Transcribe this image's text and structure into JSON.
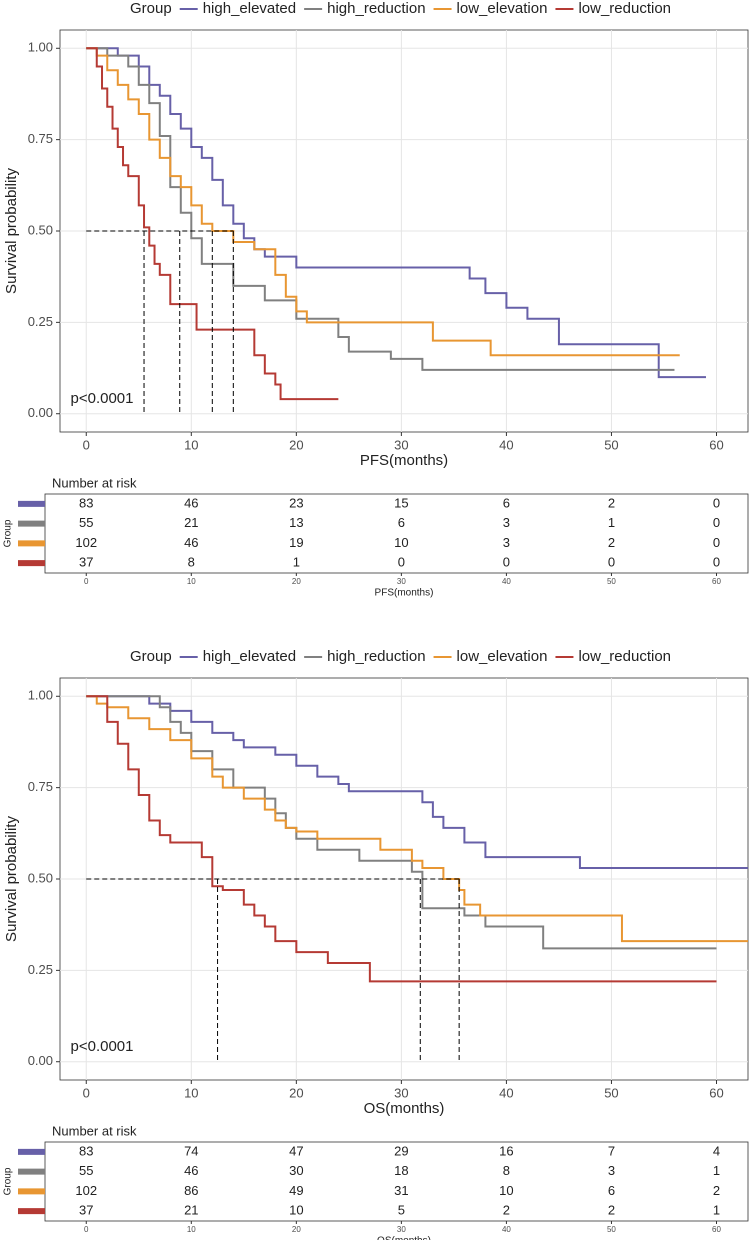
{
  "chart_data": [
    {
      "type": "step",
      "legend_title": "Group",
      "xlabel": "PFS(months)",
      "ylabel": "Survival probability",
      "annotation": "p<0.0001",
      "xlim": [
        -2.5,
        63
      ],
      "ylim": [
        -0.05,
        1.05
      ],
      "xticks": [
        0,
        10,
        20,
        30,
        40,
        50,
        60
      ],
      "yticks": [
        {
          "value": 0,
          "label": "0.00"
        },
        {
          "value": 0.25,
          "label": "0.25"
        },
        {
          "value": 0.5,
          "label": "0.50"
        },
        {
          "value": 0.75,
          "label": "0.75"
        },
        {
          "value": 1,
          "label": "1.00"
        }
      ],
      "grid": true,
      "series": [
        {
          "name": "high_elevated",
          "color": "#6760a8",
          "x": [
            0,
            3,
            5,
            6,
            7,
            8,
            9,
            10,
            11,
            12,
            13,
            14,
            15,
            16,
            17,
            20,
            36.5,
            38,
            40,
            42,
            45,
            54.5,
            59
          ],
          "values": [
            1,
            0.98,
            0.95,
            0.9,
            0.87,
            0.82,
            0.78,
            0.73,
            0.7,
            0.64,
            0.57,
            0.52,
            0.48,
            0.45,
            0.43,
            0.4,
            0.37,
            0.33,
            0.29,
            0.26,
            0.19,
            0.1,
            0.1
          ]
        },
        {
          "name": "high_reduction",
          "color": "#808080",
          "x": [
            0,
            2,
            4,
            5,
            6,
            7,
            8,
            9,
            10,
            11,
            14,
            17,
            20,
            24,
            25,
            29,
            32,
            56
          ],
          "values": [
            1,
            0.98,
            0.95,
            0.9,
            0.85,
            0.76,
            0.62,
            0.55,
            0.48,
            0.41,
            0.35,
            0.31,
            0.26,
            0.21,
            0.17,
            0.15,
            0.12,
            0.12
          ]
        },
        {
          "name": "low_elevation",
          "color": "#e89632",
          "x": [
            0,
            1,
            2,
            3,
            4,
            5,
            6,
            7,
            8,
            9,
            10,
            11,
            12,
            14,
            16,
            18,
            19,
            20,
            21,
            33,
            38.5,
            56.5
          ],
          "values": [
            1,
            0.98,
            0.94,
            0.9,
            0.86,
            0.82,
            0.75,
            0.7,
            0.65,
            0.62,
            0.57,
            0.52,
            0.5,
            0.47,
            0.45,
            0.38,
            0.32,
            0.28,
            0.25,
            0.2,
            0.16,
            0.16
          ]
        },
        {
          "name": "low_reduction",
          "color": "#b53a34",
          "x": [
            0,
            1,
            1.5,
            2,
            2.5,
            3,
            3.5,
            4,
            5,
            5.5,
            6,
            6.5,
            7,
            8,
            10.5,
            15,
            16,
            17,
            18,
            18.5,
            24
          ],
          "values": [
            1,
            0.95,
            0.89,
            0.84,
            0.78,
            0.73,
            0.68,
            0.65,
            0.57,
            0.51,
            0.46,
            0.41,
            0.38,
            0.3,
            0.23,
            0.23,
            0.16,
            0.11,
            0.08,
            0.04,
            0.04
          ]
        }
      ],
      "reference_lines": {
        "y": 0.5,
        "x": [
          5.5,
          8.9,
          12,
          14
        ]
      },
      "risk_table": {
        "title": "Number at risk",
        "ylabel": "Group",
        "xlabel": "PFS(months)",
        "times": [
          0,
          10,
          20,
          30,
          40,
          50,
          60
        ],
        "rows": [
          [
            83,
            46,
            23,
            15,
            6,
            2,
            0
          ],
          [
            55,
            21,
            13,
            6,
            3,
            1,
            0
          ],
          [
            102,
            46,
            19,
            10,
            3,
            2,
            0
          ],
          [
            37,
            8,
            1,
            0,
            0,
            0,
            0
          ]
        ]
      }
    },
    {
      "type": "step",
      "legend_title": "Group",
      "xlabel": "OS(months)",
      "ylabel": "Survival probability",
      "annotation": "p<0.0001",
      "xlim": [
        -2.5,
        63
      ],
      "ylim": [
        -0.05,
        1.05
      ],
      "xticks": [
        0,
        10,
        20,
        30,
        40,
        50,
        60
      ],
      "yticks": [
        {
          "value": 0,
          "label": "0.00"
        },
        {
          "value": 0.25,
          "label": "0.25"
        },
        {
          "value": 0.5,
          "label": "0.50"
        },
        {
          "value": 0.75,
          "label": "0.75"
        },
        {
          "value": 1,
          "label": "1.00"
        }
      ],
      "grid": true,
      "series": [
        {
          "name": "high_elevated",
          "color": "#6760a8",
          "x": [
            0,
            6,
            8,
            10,
            12,
            14,
            15,
            18,
            20,
            22,
            24,
            25,
            32,
            33,
            34,
            36,
            38,
            47,
            63
          ],
          "values": [
            1,
            0.98,
            0.96,
            0.93,
            0.9,
            0.88,
            0.86,
            0.84,
            0.81,
            0.78,
            0.76,
            0.74,
            0.71,
            0.67,
            0.64,
            0.6,
            0.56,
            0.53,
            0.53
          ]
        },
        {
          "name": "high_reduction",
          "color": "#808080",
          "x": [
            0,
            7,
            8,
            9,
            10,
            12,
            14,
            17,
            18,
            19,
            20,
            22,
            26,
            31,
            32,
            36,
            38,
            43.5,
            60
          ],
          "values": [
            1,
            0.97,
            0.93,
            0.9,
            0.85,
            0.8,
            0.75,
            0.72,
            0.68,
            0.64,
            0.61,
            0.58,
            0.55,
            0.52,
            0.42,
            0.4,
            0.37,
            0.31,
            0.31
          ]
        },
        {
          "name": "low_elevation",
          "color": "#e89632",
          "x": [
            0,
            1,
            2,
            4,
            6,
            8,
            10,
            12,
            13,
            15,
            17,
            18,
            19,
            20,
            22,
            28,
            31,
            32,
            34,
            35.5,
            36,
            37.5,
            51,
            63
          ],
          "values": [
            1,
            0.98,
            0.97,
            0.94,
            0.91,
            0.88,
            0.83,
            0.78,
            0.75,
            0.72,
            0.69,
            0.66,
            0.64,
            0.63,
            0.61,
            0.58,
            0.55,
            0.53,
            0.5,
            0.47,
            0.43,
            0.4,
            0.33,
            0.33
          ]
        },
        {
          "name": "low_reduction",
          "color": "#b53a34",
          "x": [
            0,
            2,
            3,
            4,
            5,
            6,
            7,
            8,
            11,
            12,
            13,
            15,
            16,
            17,
            18,
            20,
            23,
            27,
            60
          ],
          "values": [
            1,
            0.93,
            0.87,
            0.8,
            0.73,
            0.66,
            0.62,
            0.6,
            0.56,
            0.48,
            0.47,
            0.43,
            0.4,
            0.37,
            0.33,
            0.3,
            0.27,
            0.22,
            0.22
          ]
        }
      ],
      "reference_lines": {
        "y": 0.5,
        "x": [
          12.5,
          31.8,
          35.5
        ]
      },
      "risk_table": {
        "title": "Number at risk",
        "ylabel": "Group",
        "xlabel": "OS(months)",
        "times": [
          0,
          10,
          20,
          30,
          40,
          50,
          60
        ],
        "rows": [
          [
            83,
            74,
            47,
            29,
            16,
            7,
            4
          ],
          [
            55,
            46,
            30,
            18,
            8,
            3,
            1
          ],
          [
            102,
            86,
            49,
            31,
            10,
            6,
            2
          ],
          [
            37,
            21,
            10,
            5,
            2,
            2,
            1
          ]
        ]
      }
    }
  ]
}
